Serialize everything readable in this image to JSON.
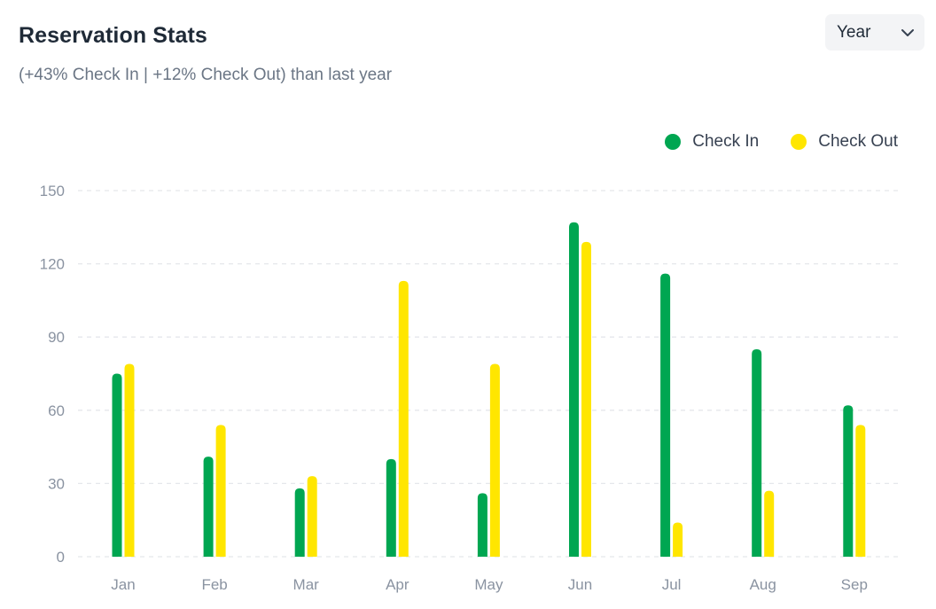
{
  "header": {
    "title": "Reservation Stats",
    "subtitle": "(+43% Check In | +12% Check Out) than last year"
  },
  "period_select": {
    "value": "Year",
    "icon": "chevron-down-icon"
  },
  "colors": {
    "check_in": "#00a651",
    "check_out": "#ffe600",
    "grid": "#e5e7eb"
  },
  "chart_data": {
    "type": "bar",
    "title": "Reservation Stats",
    "xlabel": "",
    "ylabel": "",
    "ylim": [
      0,
      150
    ],
    "yticks": [
      0,
      30,
      60,
      90,
      120,
      150
    ],
    "grid": true,
    "legend_position": "top-right",
    "categories": [
      "Jan",
      "Feb",
      "Mar",
      "Apr",
      "May",
      "Jun",
      "Jul",
      "Aug",
      "Sep"
    ],
    "series": [
      {
        "name": "Check In",
        "color": "#00a651",
        "values": [
          75,
          41,
          28,
          40,
          26,
          137,
          116,
          85,
          62
        ]
      },
      {
        "name": "Check Out",
        "color": "#ffe600",
        "values": [
          79,
          54,
          33,
          113,
          79,
          129,
          14,
          27,
          54
        ]
      }
    ]
  }
}
